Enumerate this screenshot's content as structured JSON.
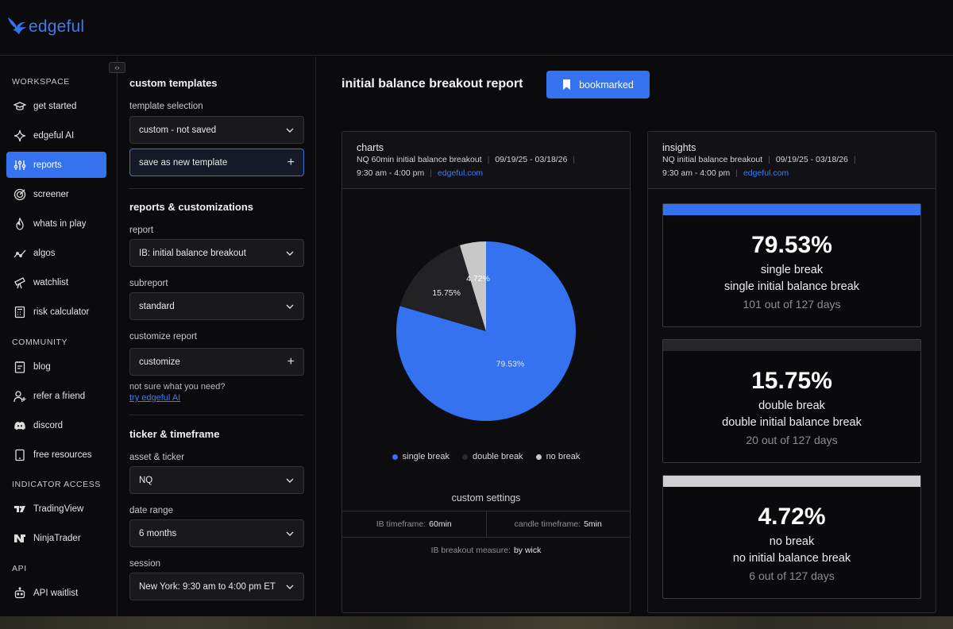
{
  "brand": {
    "name": "edgeful",
    "accent": "#3472f0"
  },
  "nav": {
    "sections": [
      {
        "title": "WORKSPACE",
        "items": [
          {
            "label": "get started",
            "icon": "graduation-cap-icon"
          },
          {
            "label": "edgeful AI",
            "icon": "sparkle-icon"
          },
          {
            "label": "reports",
            "icon": "sliders-icon",
            "active": true
          },
          {
            "label": "screener",
            "icon": "target-icon"
          },
          {
            "label": "whats in play",
            "icon": "flame-icon"
          },
          {
            "label": "algos",
            "icon": "trend-line-icon"
          },
          {
            "label": "watchlist",
            "icon": "telescope-icon"
          },
          {
            "label": "risk calculator",
            "icon": "calculator-icon"
          }
        ]
      },
      {
        "title": "COMMUNITY",
        "items": [
          {
            "label": "blog",
            "icon": "notebook-icon"
          },
          {
            "label": "refer a friend",
            "icon": "user-plus-icon"
          },
          {
            "label": "discord",
            "icon": "discord-icon"
          },
          {
            "label": "free resources",
            "icon": "tablet-icon"
          }
        ]
      },
      {
        "title": "INDICATOR ACCESS",
        "items": [
          {
            "label": "TradingView",
            "icon": "tradingview-icon"
          },
          {
            "label": "NinjaTrader",
            "icon": "ninjatrader-icon"
          }
        ]
      },
      {
        "title": "API",
        "items": [
          {
            "label": "API waitlist",
            "icon": "robot-icon"
          }
        ]
      }
    ]
  },
  "panel": {
    "templates": {
      "heading": "custom templates",
      "selection_label": "template selection",
      "selection_value": "custom - not saved",
      "save_button": "save as new template"
    },
    "reports": {
      "heading": "reports & customizations",
      "report_label": "report",
      "report_value": "IB: initial balance breakout",
      "subreport_label": "subreport",
      "subreport_value": "standard",
      "customize_label": "customize report",
      "customize_button": "customize",
      "help_text": "not sure what you need?",
      "help_link": "try edgeful AI"
    },
    "ticker": {
      "heading": "ticker & timeframe",
      "asset_label": "asset & ticker",
      "asset_value": "NQ",
      "range_label": "date range",
      "range_value": "6 months",
      "session_label": "session",
      "session_value": "New York: 9:30 am to 4:00 pm ET"
    }
  },
  "main": {
    "title": "initial balance breakout report",
    "bookmark_label": "bookmarked"
  },
  "charts_card": {
    "title": "charts",
    "meta_report": "NQ 60min initial balance breakout",
    "meta_dates": "09/19/25 - 03/18/26",
    "meta_session": "9:30 am - 4:00 pm",
    "meta_site": "edgeful.com",
    "custom_settings": {
      "title": "custom settings",
      "ib_timeframe_label": "IB timeframe:",
      "ib_timeframe_value": "60min",
      "candle_timeframe_label": "candle timeframe:",
      "candle_timeframe_value": "5min",
      "breakout_label": "IB breakout measure:",
      "breakout_value": "by wick"
    }
  },
  "chart_data": {
    "type": "pie",
    "categories": [
      "single break",
      "double break",
      "no break"
    ],
    "values": [
      79.53,
      15.75,
      4.72
    ],
    "labels": [
      "79.53%",
      "15.75%",
      "4.72%"
    ],
    "colors": [
      "#3472f0",
      "#222226",
      "#c8c8c8"
    ],
    "title": "",
    "legend": "bottom"
  },
  "insights_card": {
    "title": "insights",
    "meta_report": "NQ initial balance breakout",
    "meta_dates": "09/19/25 - 03/18/26",
    "meta_session": "9:30 am - 4:00 pm",
    "meta_site": "edgeful.com",
    "items": [
      {
        "pct": "79.53%",
        "name": "single break",
        "desc": "single initial balance break",
        "count": "101 out of 127 days",
        "color": "#3472f0"
      },
      {
        "pct": "15.75%",
        "name": "double break",
        "desc": "double initial balance break",
        "count": "20 out of 127 days",
        "color": "#26262a"
      },
      {
        "pct": "4.72%",
        "name": "no break",
        "desc": "no initial balance break",
        "count": "6 out of 127 days",
        "color": "#d0d0d0"
      }
    ]
  }
}
